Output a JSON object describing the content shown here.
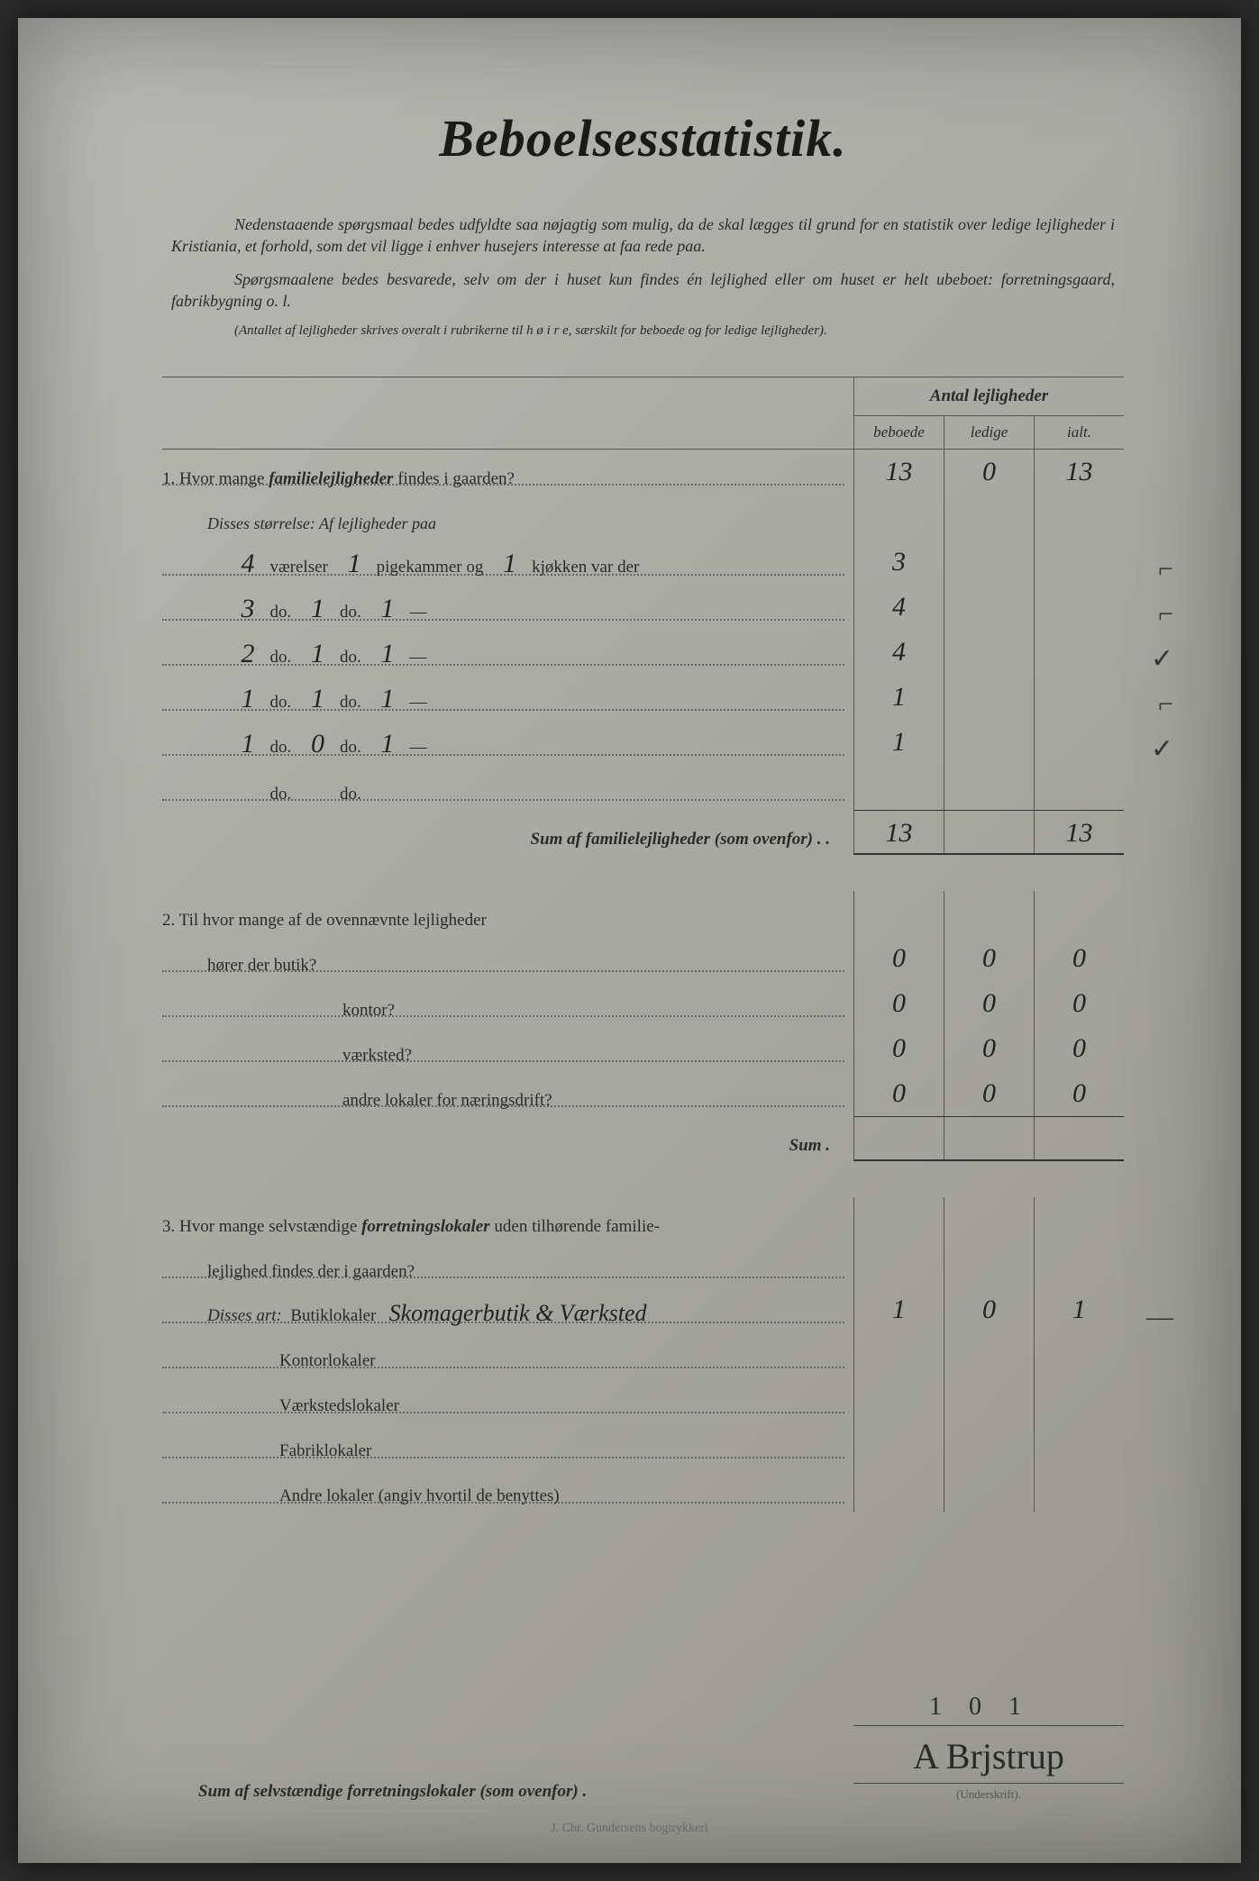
{
  "title": "Beboelsesstatistik.",
  "intro_p1": "Nedenstaaende spørgsmaal bedes udfyldte saa nøjagtig som mulig, da de skal lægges til grund for en statistik over ledige lejligheder i Kristiania, et forhold, som det vil ligge i enhver husejers interesse at faa rede paa.",
  "intro_p2": "Spørgsmaalene bedes besvarede, selv om der i huset kun findes én lejlighed eller om huset er helt ubeboet: forretningsgaard, fabrikbygning o. l.",
  "note": "(Antallet af lejligheder skrives overalt i rubrikerne til h ø i r e, særskilt for beboede og for ledige lejligheder).",
  "table_header": {
    "title": "Antal lejligheder",
    "cols": [
      "beboede",
      "ledige",
      "ialt."
    ]
  },
  "q1": {
    "label_pre": "1.  Hvor mange ",
    "label_bold": "familielejligheder",
    "label_post": " findes i gaarden?",
    "vals": [
      "13",
      "0",
      "13"
    ],
    "size_intro": "Disses størrelse:  Af lejligheder paa",
    "size_rows": [
      {
        "v": "4",
        "p": "1",
        "k": "1",
        "lbl_v": "værelser",
        "lbl_p": "pigekammer og",
        "lbl_k": "kjøkken var der",
        "beboede": "3",
        "ledige": "",
        "ialt": "",
        "margin": "⌐"
      },
      {
        "v": "3",
        "p": "1",
        "k": "1",
        "lbl_v": "do.",
        "lbl_p": "do.",
        "lbl_k": "—",
        "beboede": "4",
        "ledige": "",
        "ialt": "",
        "margin": "⌐"
      },
      {
        "v": "2",
        "p": "1",
        "k": "1",
        "lbl_v": "do.",
        "lbl_p": "do.",
        "lbl_k": "—",
        "beboede": "4",
        "ledige": "",
        "ialt": "",
        "margin": "✓"
      },
      {
        "v": "1",
        "p": "1",
        "k": "1",
        "lbl_v": "do.",
        "lbl_p": "do.",
        "lbl_k": "—",
        "beboede": "1",
        "ledige": "",
        "ialt": "",
        "margin": "⌐"
      },
      {
        "v": "1",
        "p": "0",
        "k": "1",
        "lbl_v": "do.",
        "lbl_p": "do.",
        "lbl_k": "—",
        "beboede": "1",
        "ledige": "",
        "ialt": "",
        "margin": "✓"
      },
      {
        "v": "",
        "p": "",
        "k": "",
        "lbl_v": "do.",
        "lbl_p": "do.",
        "lbl_k": "",
        "beboede": "",
        "ledige": "",
        "ialt": "",
        "margin": ""
      }
    ],
    "sum_label": "Sum af familielejligheder (som ovenfor) . .",
    "sum_vals": [
      "13",
      "",
      "13"
    ]
  },
  "q2": {
    "label": "2.  Til hvor mange af de ovennævnte lejligheder",
    "rows": [
      {
        "label": "hører der butik?",
        "vals": [
          "0",
          "0",
          "0"
        ]
      },
      {
        "label": "kontor?",
        "vals": [
          "0",
          "0",
          "0"
        ]
      },
      {
        "label": "værksted?",
        "vals": [
          "0",
          "0",
          "0"
        ]
      },
      {
        "label": "andre lokaler for næringsdrift?",
        "vals": [
          "0",
          "0",
          "0"
        ]
      }
    ],
    "sum_label": "Sum .",
    "sum_vals": [
      "",
      "",
      ""
    ]
  },
  "q3": {
    "label_pre": "3.  Hvor mange selvstændige ",
    "label_bold": "forretningslokaler",
    "label_post": " uden tilhørende familie-",
    "line2": "lejlighed findes der i gaarden?",
    "art_label": "Disses art:",
    "rows": [
      {
        "label": "Butiklokaler",
        "hw": "Skomagerbutik & Værksted",
        "vals": [
          "1",
          "0",
          "1"
        ],
        "margin": "—"
      },
      {
        "label": "Kontorlokaler",
        "hw": "",
        "vals": [
          "",
          "",
          ""
        ]
      },
      {
        "label": "Værkstedslokaler",
        "hw": "",
        "vals": [
          "",
          "",
          ""
        ]
      },
      {
        "label": "Fabriklokaler",
        "hw": "",
        "vals": [
          "",
          "",
          ""
        ]
      },
      {
        "label": "Andre lokaler (angiv hvortil de benyttes)",
        "hw": "",
        "vals": [
          "",
          "",
          ""
        ]
      }
    ]
  },
  "final_sum": {
    "label": "Sum af selvstændige forretningslokaler (som ovenfor) .",
    "vals": [
      "1",
      "0",
      "1"
    ]
  },
  "signature": "A Brjstrup",
  "sig_caption": "(Underskrift).",
  "printer": "J. Chr. Gundersens bogtrykkeri"
}
